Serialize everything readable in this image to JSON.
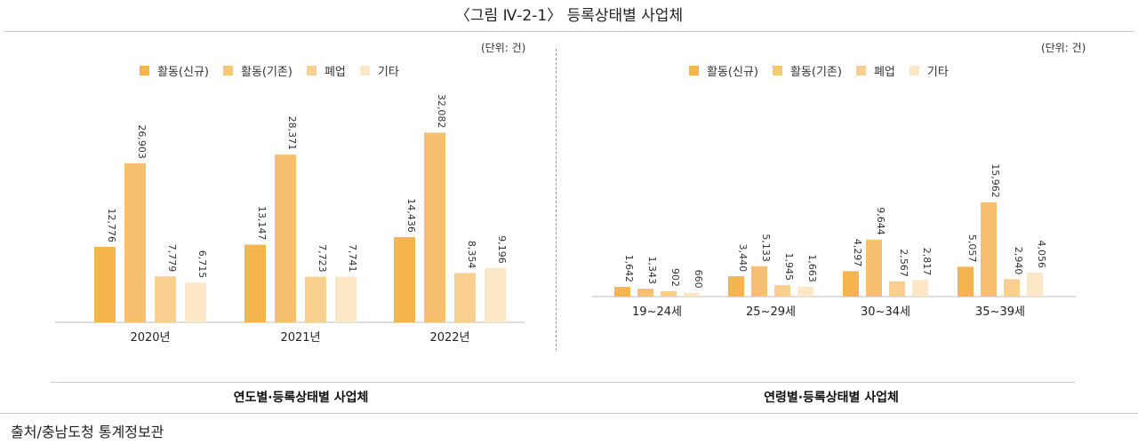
{
  "title": "〈그림 Ⅳ-2-1〉 등록상태별 사업체",
  "source": "출처/충남도청 통계정보관",
  "chart_data": [
    {
      "type": "bar",
      "title": "연도별·등록상태별 사업체",
      "unit": "(단위: 건)",
      "categories": [
        "2020년",
        "2021년",
        "2022년"
      ],
      "ylim": [
        0,
        35000
      ],
      "series": [
        {
          "name": "활동(신규)",
          "color": "#F4B54E",
          "values": [
            12776,
            13147,
            14436
          ],
          "labels": [
            "12,776",
            "13,147",
            "14,436"
          ]
        },
        {
          "name": "활동(기존)",
          "color": "#F4B54E",
          "values": [
            26903,
            28371,
            32082
          ],
          "labels": [
            "26,903",
            "28,371",
            "32,082"
          ]
        },
        {
          "name": "폐업",
          "color": "#F8CF8E",
          "values": [
            7779,
            7723,
            8354
          ],
          "labels": [
            "7,779",
            "7,723",
            "8,354"
          ]
        },
        {
          "name": "기타",
          "color": "#FCE7C6",
          "values": [
            6715,
            7741,
            9196
          ],
          "labels": [
            "6,715",
            "7,741",
            "9,196"
          ]
        }
      ]
    },
    {
      "type": "bar",
      "title": "연령별·등록상태별 사업체",
      "unit": "(단위: 건)",
      "categories": [
        "19~24세",
        "25~29세",
        "30~34세",
        "35~39세"
      ],
      "ylim": [
        0,
        35000
      ],
      "series": [
        {
          "name": "활동(신규)",
          "color": "#F4B54E",
          "values": [
            1642,
            3440,
            4297,
            5057
          ],
          "labels": [
            "1,642",
            "3,440",
            "4,297",
            "5,057"
          ]
        },
        {
          "name": "활동(기존)",
          "color": "#F4B54E",
          "values": [
            1343,
            5133,
            9644,
            15962
          ],
          "labels": [
            "1,343",
            "5,133",
            "9,644",
            "15,962"
          ]
        },
        {
          "name": "폐업",
          "color": "#F8CF8E",
          "values": [
            902,
            1945,
            2567,
            2940
          ],
          "labels": [
            "902",
            "1,945",
            "2,567",
            "2,940"
          ]
        },
        {
          "name": "기타",
          "color": "#FCE7C6",
          "values": [
            660,
            1663,
            2817,
            4056
          ],
          "labels": [
            "660",
            "1,663",
            "2,817",
            "4,056"
          ]
        }
      ]
    }
  ]
}
